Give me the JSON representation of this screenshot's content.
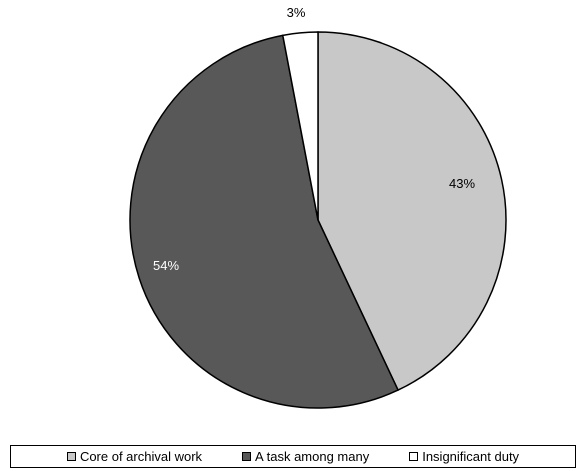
{
  "chart_data": {
    "type": "pie",
    "title": "",
    "slices": [
      {
        "label": "Core of archival work",
        "value": 43,
        "display": "43%",
        "color": "#c8c8c8"
      },
      {
        "label": "A task among many",
        "value": 54,
        "display": "54%",
        "color": "#585858"
      },
      {
        "label": "Insignificant duty",
        "value": 3,
        "display": "3%",
        "color": "#ffffff"
      }
    ],
    "start_angle": "12 o'clock",
    "direction": "clockwise",
    "outline_color": "#000000",
    "legend_placement": "bottom"
  }
}
